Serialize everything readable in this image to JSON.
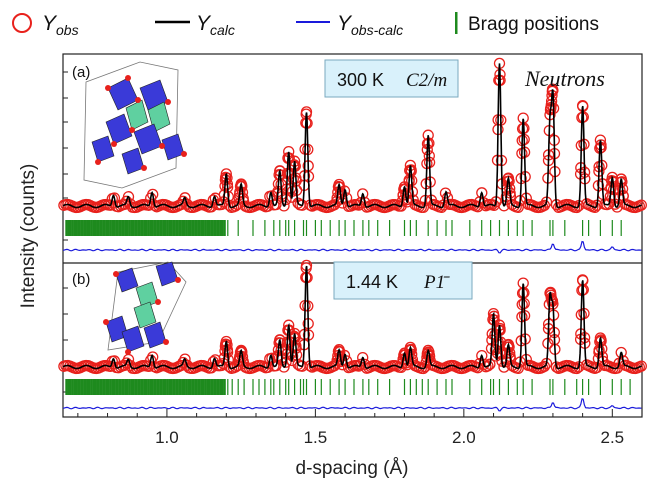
{
  "chart_data": {
    "type": "line",
    "xlabel": "d-spacing (Å)",
    "ylabel": "Intensity (counts)",
    "xlim": [
      0.65,
      2.6
    ],
    "x_ticks": [
      "1.0",
      "1.5",
      "2.0",
      "2.5"
    ],
    "x_tick_values": [
      1.0,
      1.5,
      2.0,
      2.5
    ],
    "legend": {
      "position": "top",
      "items": [
        {
          "name": "Y",
          "sub": "obs",
          "marker": "open-circle",
          "color": "#e8211c"
        },
        {
          "name": "Y",
          "sub": "calc",
          "marker": "line",
          "color": "#000000"
        },
        {
          "name": "Y",
          "sub": "obs-calc",
          "marker": "line",
          "color": "#1a1adb"
        },
        {
          "name": "Bragg positions",
          "sub": "",
          "marker": "vbar",
          "color": "#1e8a1e"
        }
      ]
    },
    "annotation": "Neutrons",
    "panels": [
      {
        "id": "a",
        "letter": "(a)",
        "label_temp": "300 K",
        "label_group": "C2/m",
        "peaks": [
          {
            "d": 0.82,
            "h": 0.08
          },
          {
            "d": 0.87,
            "h": 0.06
          },
          {
            "d": 0.95,
            "h": 0.1
          },
          {
            "d": 1.06,
            "h": 0.05
          },
          {
            "d": 1.16,
            "h": 0.07
          },
          {
            "d": 1.2,
            "h": 0.22
          },
          {
            "d": 1.25,
            "h": 0.14
          },
          {
            "d": 1.35,
            "h": 0.1
          },
          {
            "d": 1.38,
            "h": 0.23
          },
          {
            "d": 1.41,
            "h": 0.38
          },
          {
            "d": 1.43,
            "h": 0.3
          },
          {
            "d": 1.47,
            "h": 0.65
          },
          {
            "d": 1.58,
            "h": 0.14
          },
          {
            "d": 1.6,
            "h": 0.12
          },
          {
            "d": 1.66,
            "h": 0.09
          },
          {
            "d": 1.8,
            "h": 0.14
          },
          {
            "d": 1.82,
            "h": 0.27
          },
          {
            "d": 1.88,
            "h": 0.48
          },
          {
            "d": 1.94,
            "h": 0.1
          },
          {
            "d": 2.06,
            "h": 0.1
          },
          {
            "d": 2.12,
            "h": 0.98
          },
          {
            "d": 2.15,
            "h": 0.18
          },
          {
            "d": 2.2,
            "h": 0.6
          },
          {
            "d": 2.29,
            "h": 0.55
          },
          {
            "d": 2.3,
            "h": 0.74
          },
          {
            "d": 2.4,
            "h": 0.68
          },
          {
            "d": 2.46,
            "h": 0.45
          },
          {
            "d": 2.5,
            "h": 0.2
          },
          {
            "d": 2.53,
            "h": 0.18
          }
        ],
        "bragg_positions": [
          1.205,
          1.24,
          1.29,
          1.33,
          1.36,
          1.38,
          1.4,
          1.41,
          1.43,
          1.46,
          1.47,
          1.5,
          1.52,
          1.55,
          1.58,
          1.6,
          1.63,
          1.66,
          1.68,
          1.71,
          1.75,
          1.8,
          1.82,
          1.84,
          1.88,
          1.91,
          1.94,
          1.96,
          2.02,
          2.06,
          2.09,
          2.12,
          2.15,
          2.18,
          2.2,
          2.23,
          2.29,
          2.3,
          2.34,
          2.4,
          2.42,
          2.46,
          2.5,
          2.53
        ],
        "difference_spikes": [
          {
            "d": 2.12,
            "v": -0.3
          },
          {
            "d": 2.3,
            "v": 0.9
          },
          {
            "d": 2.4,
            "v": 1.2
          },
          {
            "d": 2.5,
            "v": 0.4
          }
        ]
      },
      {
        "id": "b",
        "letter": "(b)",
        "label_temp": "1.44 K",
        "label_group": "P1̄",
        "peaks": [
          {
            "d": 0.82,
            "h": 0.08
          },
          {
            "d": 0.87,
            "h": 0.06
          },
          {
            "d": 0.95,
            "h": 0.11
          },
          {
            "d": 1.06,
            "h": 0.06
          },
          {
            "d": 1.16,
            "h": 0.08
          },
          {
            "d": 1.2,
            "h": 0.22
          },
          {
            "d": 1.25,
            "h": 0.13
          },
          {
            "d": 1.35,
            "h": 0.11
          },
          {
            "d": 1.38,
            "h": 0.22
          },
          {
            "d": 1.41,
            "h": 0.37
          },
          {
            "d": 1.43,
            "h": 0.28
          },
          {
            "d": 1.47,
            "h": 0.88
          },
          {
            "d": 1.58,
            "h": 0.14
          },
          {
            "d": 1.6,
            "h": 0.12
          },
          {
            "d": 1.66,
            "h": 0.09
          },
          {
            "d": 1.8,
            "h": 0.13
          },
          {
            "d": 1.82,
            "h": 0.16
          },
          {
            "d": 1.88,
            "h": 0.14
          },
          {
            "d": 2.06,
            "h": 0.11
          },
          {
            "d": 2.1,
            "h": 0.45
          },
          {
            "d": 2.12,
            "h": 0.37
          },
          {
            "d": 2.15,
            "h": 0.18
          },
          {
            "d": 2.2,
            "h": 0.72
          },
          {
            "d": 2.29,
            "h": 0.58
          },
          {
            "d": 2.3,
            "h": 0.49
          },
          {
            "d": 2.4,
            "h": 0.74
          },
          {
            "d": 2.46,
            "h": 0.25
          },
          {
            "d": 2.53,
            "h": 0.12
          }
        ],
        "bragg_positions": [
          1.205,
          1.22,
          1.24,
          1.26,
          1.29,
          1.31,
          1.33,
          1.35,
          1.36,
          1.38,
          1.4,
          1.41,
          1.43,
          1.45,
          1.46,
          1.47,
          1.5,
          1.52,
          1.55,
          1.58,
          1.6,
          1.63,
          1.66,
          1.68,
          1.71,
          1.75,
          1.8,
          1.82,
          1.84,
          1.86,
          1.88,
          1.91,
          1.94,
          1.96,
          2.02,
          2.06,
          2.09,
          2.1,
          2.12,
          2.15,
          2.18,
          2.2,
          2.23,
          2.29,
          2.3,
          2.34,
          2.38,
          2.4,
          2.42,
          2.46,
          2.5,
          2.53,
          2.56
        ],
        "difference_spikes": [
          {
            "d": 2.12,
            "v": -0.3
          },
          {
            "d": 2.3,
            "v": 0.8
          },
          {
            "d": 2.4,
            "v": 1.3
          },
          {
            "d": 2.5,
            "v": 0.3
          }
        ]
      }
    ]
  }
}
